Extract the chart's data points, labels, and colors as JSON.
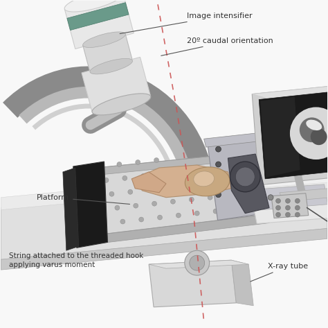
{
  "background_color": "#f8f8f8",
  "figsize": [
    4.74,
    4.73
  ],
  "dpi": 100,
  "labels": {
    "image_intensifier": "Image intensifier",
    "caudal_orientation": "20º caudal orientation",
    "platform": "Platform",
    "string_label": "String attached to the threaded hook\napplying varus moment",
    "xray_tube": "X-ray tube"
  },
  "ann_color": "#333333",
  "dashed_color": "#cc5555",
  "label_fontsize": 8.0
}
